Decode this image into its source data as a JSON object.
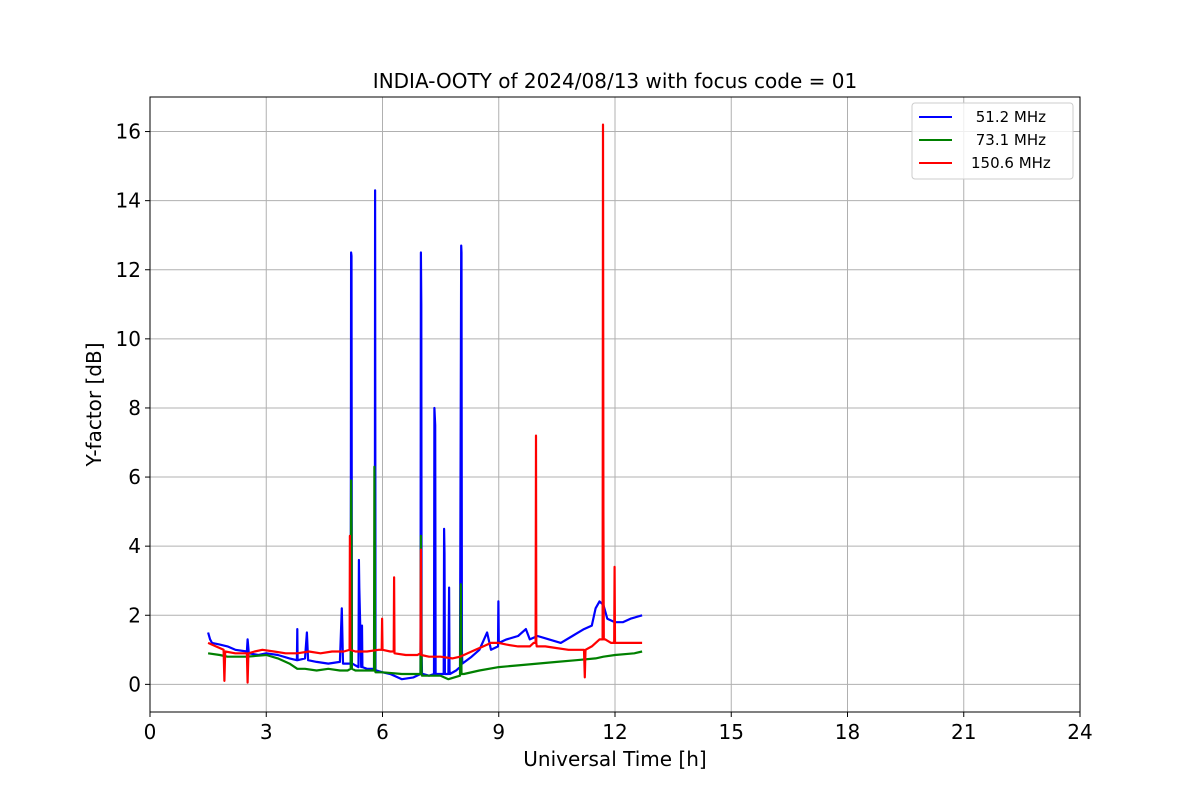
{
  "chart_data": {
    "type": "line",
    "title": "INDIA-OOTY of 2024/08/13 with focus code = 01",
    "xlabel": "Universal Time [h]",
    "ylabel": "Y-factor [dB]",
    "xlim": [
      0,
      24
    ],
    "ylim": [
      -0.8,
      17
    ],
    "xticks": [
      0,
      3,
      6,
      9,
      12,
      15,
      18,
      21,
      24
    ],
    "yticks": [
      0,
      2,
      4,
      6,
      8,
      10,
      12,
      14,
      16
    ],
    "grid": true,
    "legend_position": "top-right",
    "series": [
      {
        "name": " 51.2 MHz",
        "color": "#0000ff",
        "x": [
          1.5,
          1.55,
          1.6,
          1.8,
          2.0,
          2.2,
          2.5,
          2.52,
          2.55,
          2.8,
          3.0,
          3.3,
          3.6,
          3.79,
          3.8,
          3.81,
          4.0,
          4.05,
          4.08,
          4.3,
          4.6,
          4.9,
          4.95,
          4.98,
          5.1,
          5.18,
          5.19,
          5.2,
          5.21,
          5.22,
          5.3,
          5.38,
          5.39,
          5.4,
          5.45,
          5.47,
          5.48,
          5.6,
          5.75,
          5.8,
          5.81,
          5.82,
          5.85,
          6.0,
          6.2,
          6.5,
          6.8,
          6.98,
          6.99,
          7.0,
          7.01,
          7.02,
          7.05,
          7.2,
          7.33,
          7.34,
          7.36,
          7.37,
          7.38,
          7.5,
          7.58,
          7.59,
          7.6,
          7.61,
          7.7,
          7.72,
          7.73,
          7.74,
          7.9,
          8.0,
          8.03,
          8.04,
          8.05,
          8.06,
          8.3,
          8.5,
          8.7,
          8.8,
          8.98,
          8.99,
          9.0,
          9.2,
          9.5,
          9.7,
          9.8,
          10.0,
          10.3,
          10.6,
          10.9,
          11.2,
          11.4,
          11.5,
          11.6,
          11.7,
          11.8,
          12.0,
          12.2,
          12.4,
          12.7
        ],
        "y": [
          1.5,
          1.3,
          1.2,
          1.15,
          1.1,
          1.0,
          0.95,
          1.3,
          0.9,
          0.85,
          0.9,
          0.85,
          0.75,
          0.7,
          1.6,
          0.7,
          0.75,
          1.5,
          0.7,
          0.65,
          0.6,
          0.65,
          2.2,
          0.6,
          0.6,
          0.6,
          12.5,
          12.4,
          0.6,
          0.6,
          0.55,
          0.5,
          3.6,
          2.8,
          0.5,
          1.7,
          0.5,
          0.45,
          0.45,
          0.4,
          14.3,
          0.4,
          0.4,
          0.35,
          0.3,
          0.15,
          0.2,
          0.3,
          12.5,
          11.0,
          1.0,
          0.3,
          0.3,
          0.25,
          0.3,
          8.0,
          7.5,
          0.3,
          0.3,
          0.3,
          0.3,
          4.5,
          3.8,
          0.3,
          0.3,
          2.8,
          0.4,
          0.3,
          0.4,
          0.5,
          12.7,
          12.5,
          1.0,
          0.6,
          0.8,
          1.0,
          1.5,
          1.0,
          1.1,
          2.4,
          1.2,
          1.3,
          1.4,
          1.6,
          1.3,
          1.4,
          1.3,
          1.2,
          1.4,
          1.6,
          1.7,
          2.2,
          2.4,
          2.3,
          1.9,
          1.8,
          1.8,
          1.9,
          2.0
        ]
      },
      {
        "name": " 73.1 MHz",
        "color": "#008000",
        "x": [
          1.5,
          1.8,
          2.0,
          2.5,
          3.0,
          3.3,
          3.6,
          3.8,
          4.0,
          4.3,
          4.6,
          4.9,
          5.1,
          5.18,
          5.19,
          5.2,
          5.21,
          5.3,
          5.6,
          5.78,
          5.79,
          5.8,
          5.81,
          5.82,
          6.0,
          6.5,
          6.98,
          6.99,
          7.0,
          7.01,
          7.02,
          7.2,
          7.5,
          7.7,
          8.0,
          8.02,
          8.03,
          8.04,
          8.1,
          8.5,
          9.0,
          9.5,
          10.0,
          10.5,
          11.0,
          11.5,
          11.7,
          12.0,
          12.5,
          12.7
        ],
        "y": [
          0.9,
          0.85,
          0.8,
          0.8,
          0.85,
          0.75,
          0.6,
          0.45,
          0.45,
          0.4,
          0.45,
          0.4,
          0.4,
          0.45,
          5.9,
          4.5,
          0.45,
          0.4,
          0.4,
          0.4,
          6.3,
          4.0,
          0.4,
          0.35,
          0.35,
          0.3,
          0.3,
          4.3,
          2.0,
          0.3,
          0.25,
          0.25,
          0.25,
          0.15,
          0.25,
          2.9,
          1.5,
          0.3,
          0.3,
          0.4,
          0.5,
          0.55,
          0.6,
          0.65,
          0.7,
          0.75,
          0.8,
          0.85,
          0.9,
          0.95
        ]
      },
      {
        "name": "150.6 MHz",
        "color": "#ff0000",
        "x": [
          1.5,
          1.7,
          1.9,
          1.92,
          1.94,
          2.2,
          2.5,
          2.52,
          2.54,
          2.7,
          2.9,
          3.2,
          3.5,
          3.8,
          4.1,
          4.4,
          4.7,
          5.0,
          5.15,
          5.16,
          5.17,
          5.3,
          5.6,
          5.9,
          5.98,
          5.99,
          6.0,
          6.2,
          6.29,
          6.3,
          6.31,
          6.6,
          6.9,
          6.98,
          6.99,
          7.0,
          7.2,
          7.5,
          7.8,
          8.0,
          8.2,
          8.4,
          8.6,
          8.8,
          9.0,
          9.2,
          9.5,
          9.8,
          9.9,
          9.95,
          9.96,
          9.97,
          9.98,
          10.2,
          10.5,
          10.8,
          11.0,
          11.2,
          11.22,
          11.24,
          11.4,
          11.6,
          11.68,
          11.69,
          11.7,
          11.71,
          11.72,
          11.75,
          11.9,
          11.98,
          11.99,
          12.0,
          12.2,
          12.5,
          12.7
        ],
        "y": [
          1.2,
          1.1,
          1.0,
          0.1,
          0.95,
          0.9,
          0.9,
          0.05,
          0.9,
          0.95,
          1.0,
          0.95,
          0.9,
          0.9,
          0.95,
          0.9,
          0.95,
          0.95,
          1.0,
          4.3,
          1.0,
          0.95,
          0.95,
          1.0,
          1.0,
          1.9,
          1.0,
          0.95,
          0.95,
          3.1,
          0.9,
          0.85,
          0.85,
          0.9,
          3.9,
          0.85,
          0.8,
          0.8,
          0.75,
          0.8,
          0.9,
          1.0,
          1.1,
          1.2,
          1.2,
          1.15,
          1.1,
          1.1,
          1.2,
          1.2,
          7.2,
          1.2,
          1.1,
          1.1,
          1.05,
          1.0,
          1.0,
          1.0,
          0.2,
          1.0,
          1.1,
          1.3,
          1.3,
          16.2,
          5.0,
          1.3,
          1.3,
          1.3,
          1.2,
          1.2,
          3.4,
          1.2,
          1.2,
          1.2,
          1.2
        ]
      }
    ]
  }
}
